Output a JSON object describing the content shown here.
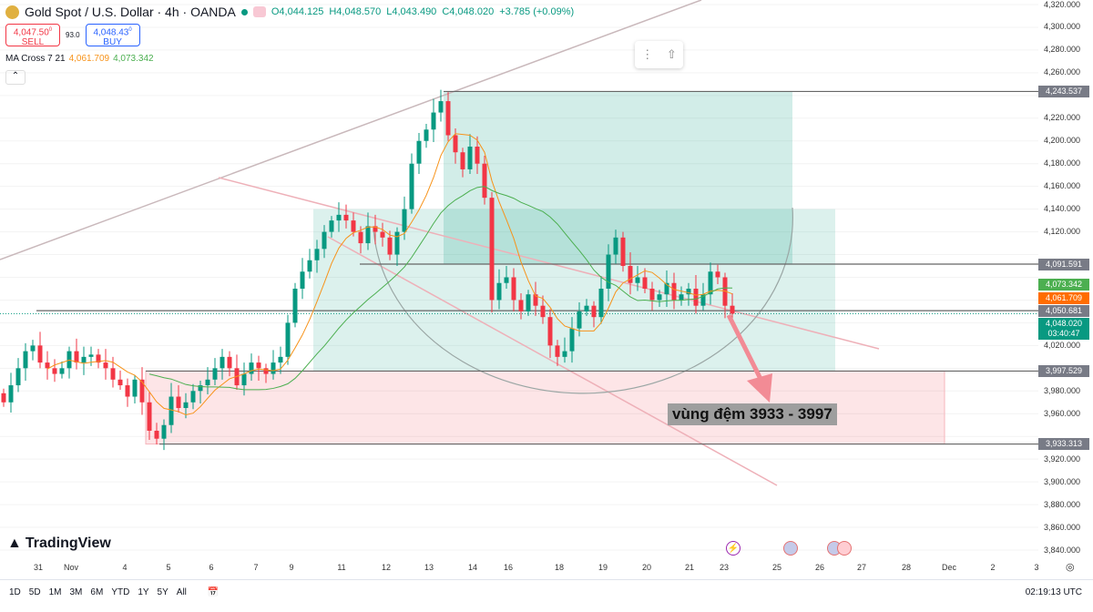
{
  "header": {
    "title": "Gold Spot / U.S. Dollar · 4h · OANDA",
    "open": "O4,044.125",
    "high": "H4,048.570",
    "low": "L4,043.490",
    "close": "C4,048.020",
    "change": "+3.785 (+0.09%)"
  },
  "trade": {
    "sell_price": "4,047.50",
    "sell_sup": "0",
    "sell_label": "SELL",
    "spread": "93.0",
    "buy_price": "4,048.43",
    "buy_sup": "0",
    "buy_label": "BUY"
  },
  "indicator": {
    "name": "MA Cross 7 21",
    "fast": "4,061.709",
    "slow": "4,073.342"
  },
  "annotation": "vùng đệm 3933 - 3997",
  "brand": "TradingView",
  "price_labels": [
    {
      "text": "4,243.537",
      "value": 4243.537,
      "color": "#787b86"
    },
    {
      "text": "4,091.591",
      "value": 4091.591,
      "color": "#787b86"
    },
    {
      "text": "4,073.342",
      "value": 4073.342,
      "color": "#4caf50"
    },
    {
      "text": "4,061.709",
      "value": 4061.709,
      "color": "#ff6d00"
    },
    {
      "text": "4,050.681",
      "value": 4050.681,
      "color": "#787b86"
    },
    {
      "text": "4,048.020",
      "value": 4048.02,
      "color": "#089981",
      "sub": "03:40:47"
    },
    {
      "text": "3,997.529",
      "value": 3997.529,
      "color": "#787b86"
    },
    {
      "text": "3,933.313",
      "value": 3933.313,
      "color": "#787b86"
    }
  ],
  "ranges": [
    "1D",
    "5D",
    "1M",
    "3M",
    "6M",
    "YTD",
    "1Y",
    "5Y",
    "All"
  ],
  "clock": "02:19:13 UTC",
  "chart_data": {
    "type": "candlestick",
    "symbol": "XAUUSD",
    "timeframe": "4h",
    "ylim": [
      3840,
      4320
    ],
    "ytick_step": 20,
    "x_ticks": [
      "31",
      "Nov",
      "4",
      "5",
      "6",
      "7",
      "9",
      "11",
      "12",
      "13",
      "14",
      "16",
      "18",
      "19",
      "20",
      "21",
      "23",
      "25",
      "26",
      "27",
      "28",
      "Dec",
      "2",
      "3"
    ],
    "closes": [
      3970,
      3985,
      4000,
      4015,
      4020,
      4005,
      4000,
      3995,
      4000,
      4015,
      4005,
      4010,
      4012,
      4005,
      4000,
      3990,
      3985,
      3975,
      3990,
      3970,
      3945,
      3938,
      3950,
      3975,
      3965,
      3970,
      3980,
      3985,
      3990,
      4000,
      4010,
      4000,
      3985,
      3995,
      4005,
      4000,
      3995,
      4005,
      4010,
      4040,
      4070,
      4085,
      4095,
      4105,
      4120,
      4130,
      4135,
      4130,
      4120,
      4110,
      4125,
      4120,
      4115,
      4100,
      4120,
      4140,
      4180,
      4200,
      4210,
      4225,
      4235,
      4205,
      4190,
      4175,
      4195,
      4180,
      4150,
      4060,
      4075,
      4080,
      4060,
      4050,
      4065,
      4055,
      4045,
      4020,
      4010,
      4015,
      4035,
      4050,
      4055,
      4045,
      4070,
      4100,
      4115,
      4090,
      4075,
      4080,
      4070,
      4060,
      4065,
      4075,
      4060,
      4065,
      4070,
      4055,
      4065,
      4085,
      4080,
      4055,
      4048
    ],
    "ma_periods": [
      7,
      21
    ],
    "ma_colors": [
      "#f7931a",
      "#4caf50"
    ],
    "zones": [
      {
        "name": "supply",
        "top": 4243.537,
        "bottom": 4091.591
      },
      {
        "name": "range",
        "top": 4140,
        "bottom": 3997.529
      },
      {
        "name": "buffer",
        "top": 3997.529,
        "bottom": 3933.313
      }
    ]
  }
}
